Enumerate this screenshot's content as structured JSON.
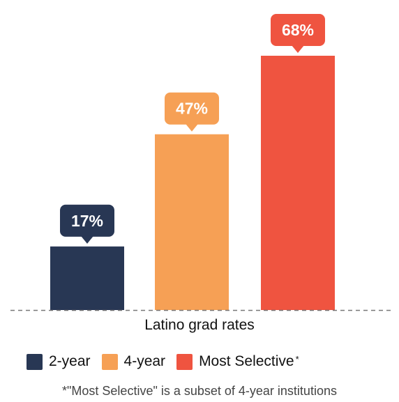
{
  "chart_data": {
    "type": "bar",
    "categories": [
      "2-year",
      "4-year",
      "Most Selective"
    ],
    "values": [
      17,
      47,
      68
    ],
    "data_labels": [
      "17%",
      "47%",
      "68%"
    ],
    "colors": [
      "#283754",
      "#f6a055",
      "#ef5440"
    ],
    "xlabel": "Latino grad rates",
    "ylim": [
      0,
      70
    ],
    "grid": false,
    "baseline_style": "dashed",
    "legend": {
      "placement": "bottom",
      "asterisk": "*"
    },
    "footnote": "*\"Most Selective\" is a subset of 4-year institutions"
  }
}
